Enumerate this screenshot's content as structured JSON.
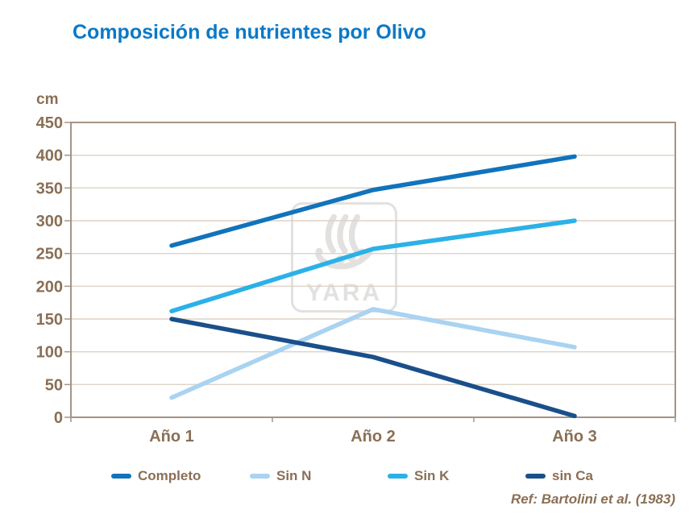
{
  "title": "Composición de nutrientes por Olivo",
  "watermark": {
    "brand": "YARA",
    "icon": "viking-ship-icon"
  },
  "footer": {
    "reference": "Ref: Bartolini et al. (1983)"
  },
  "colors": {
    "title": "#0b79c7",
    "axis_text": "#8a6f55",
    "gridline": "#ddd2c7",
    "plot_border": "#a59585",
    "watermark": "#e3e1df",
    "background": "#ffffff"
  },
  "chart_data": {
    "type": "line",
    "title": "Composición de nutrientes por Olivo",
    "ylabel": "cm",
    "xlabel": "",
    "categories": [
      "Año 1",
      "Año 2",
      "Año 3"
    ],
    "series": [
      {
        "name": "Completo",
        "color": "#1173bb",
        "values": [
          262,
          347,
          398
        ]
      },
      {
        "name": "Sin N",
        "color": "#a9d3f1",
        "values": [
          30,
          165,
          107
        ]
      },
      {
        "name": "Sin K",
        "color": "#2bb1e7",
        "values": [
          162,
          257,
          300
        ]
      },
      {
        "name": "sin Ca",
        "color": "#1a4f8a",
        "values": [
          150,
          92,
          2
        ]
      }
    ],
    "ylim": [
      0,
      450
    ],
    "ytick_step": 50,
    "grid": true,
    "legend_position": "bottom"
  }
}
